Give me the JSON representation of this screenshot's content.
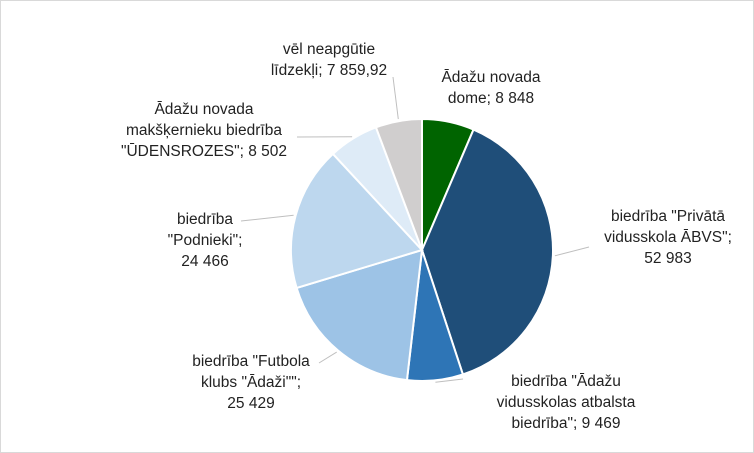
{
  "chart_data": {
    "type": "pie",
    "title": "",
    "slices": [
      {
        "name": "Ādažu novada dome",
        "value": 8848,
        "color": "#006400",
        "label_lines": [
          "Ādažu novada",
          "dome; 8 848"
        ]
      },
      {
        "name": "biedrība \"Privātā vidusskola ĀBVS\"",
        "value": 52983,
        "color": "#1f4e79",
        "label_lines": [
          "biedrība \"Privātā",
          "vidusskola ĀBVS\";",
          "52 983"
        ]
      },
      {
        "name": "biedrība \"Ādažu vidusskolas atbalsta biedrība\"",
        "value": 9469,
        "color": "#2e75b6",
        "label_lines": [
          "biedrība \"Ādažu",
          "vidusskolas atbalsta",
          "biedrība\"; 9 469"
        ]
      },
      {
        "name": "biedrība \"Futbola klubs \"Ādaži\"\"",
        "value": 25429,
        "color": "#9dc3e6",
        "label_lines": [
          "biedrība \"Futbola",
          "klubs \"Ādaži\"\";",
          "25 429"
        ]
      },
      {
        "name": "biedrība \"Podnieki\"",
        "value": 24466,
        "color": "#bdd7ee",
        "label_lines": [
          "biedrība",
          "\"Podnieki\";",
          "24 466"
        ]
      },
      {
        "name": "Ādažu novada makšķernieku biedrība \"ŪDENSROZES\"",
        "value": 8502,
        "color": "#deebf7",
        "label_lines": [
          "Ādažu novada",
          "makšķernieku biedrība",
          "\"ŪDENSROZES\"; 8 502"
        ]
      },
      {
        "name": "vēl neapgūtie līdzekļi",
        "value": 7859.92,
        "color": "#d0cece",
        "label_lines": [
          "vēl neapgūtie",
          "līdzekļi; 7 859,92"
        ]
      }
    ]
  }
}
